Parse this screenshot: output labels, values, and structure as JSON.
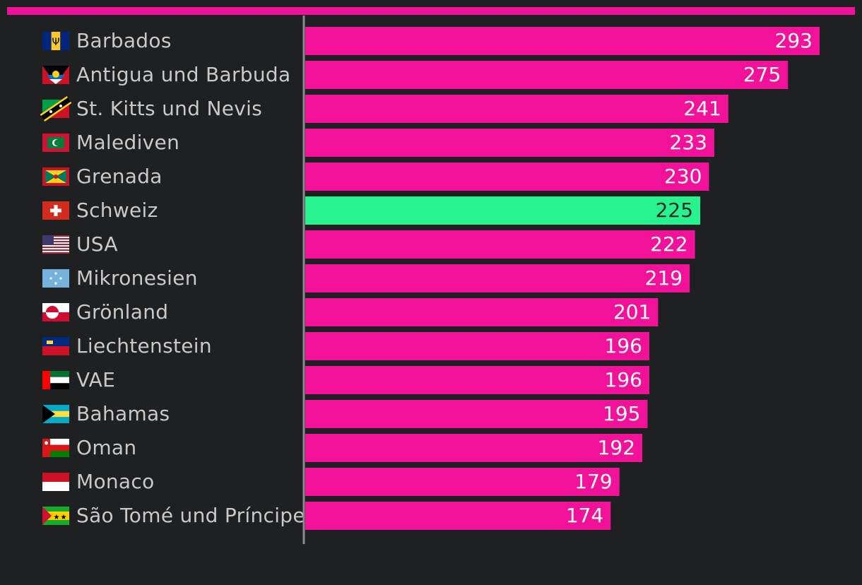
{
  "chart_data": {
    "type": "bar",
    "orientation": "horizontal",
    "title": "",
    "xlabel": "",
    "ylabel": "",
    "xlim": [
      0,
      293
    ],
    "grid": false,
    "categories": [
      "Barbados",
      "Antigua und Barbuda",
      "St. Kitts und Nevis",
      "Malediven",
      "Grenada",
      "Schweiz",
      "USA",
      "Mikronesien",
      "Grönland",
      "Liechtenstein",
      "VAE",
      "Bahamas",
      "Oman",
      "Monaco",
      "São Tomé und Príncipe"
    ],
    "values": [
      293,
      275,
      241,
      233,
      230,
      225,
      222,
      219,
      201,
      196,
      196,
      195,
      192,
      179,
      174
    ],
    "flags": [
      "barbados-flag",
      "antigua-flag",
      "st-kitts-flag",
      "maldives-flag",
      "grenada-flag",
      "switzerland-flag",
      "usa-flag",
      "micronesia-flag",
      "greenland-flag",
      "liechtenstein-flag",
      "uae-flag",
      "bahamas-flag",
      "oman-flag",
      "monaco-flag",
      "sao-tome-flag"
    ],
    "highlight_category": "Schweiz",
    "colors": {
      "bar": "#f2129a",
      "highlight": "#28f290",
      "value_text": "#ffffff",
      "highlight_value_text": "#1e2a24",
      "label_text": "#c9c9c9",
      "axis": "#8a8a8a",
      "top_rule": "#f2129a",
      "background": "#1f2022"
    }
  }
}
